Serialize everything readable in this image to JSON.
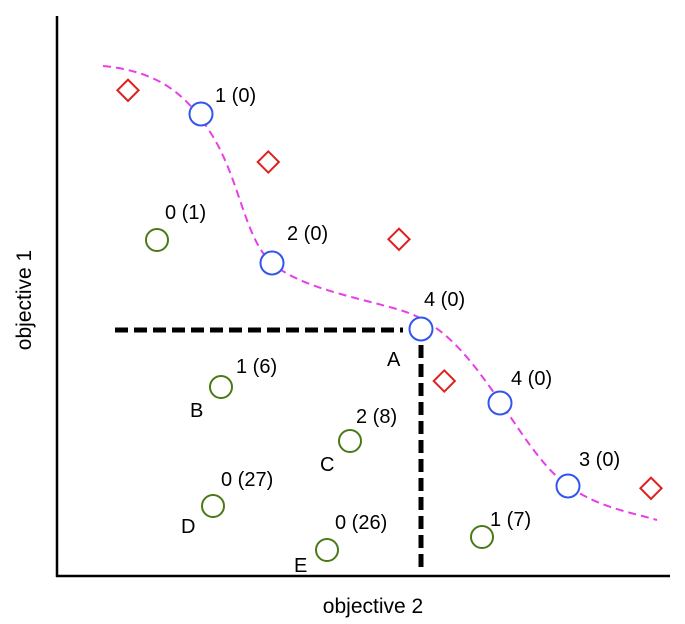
{
  "axes": {
    "x_title": "objective 2",
    "y_title": "objective 1"
  },
  "pareto_points": [
    {
      "rank": "1 (0)"
    },
    {
      "rank": "2 (0)"
    },
    {
      "rank": "4 (0)",
      "letter": "A"
    },
    {
      "rank": "4 (0)"
    },
    {
      "rank": "3 (0)"
    }
  ],
  "dominated_points": [
    {
      "rank": "0 (1)"
    },
    {
      "rank": "1 (6)",
      "letter": "B"
    },
    {
      "rank": "2 (8)",
      "letter": "C"
    },
    {
      "rank": "0 (27)",
      "letter": "D"
    },
    {
      "rank": "0 (26)",
      "letter": "E"
    },
    {
      "rank": "1 (7)"
    }
  ],
  "infeasible_points": [
    {
      "id": "d1"
    },
    {
      "id": "d2"
    },
    {
      "id": "d3"
    },
    {
      "id": "d4"
    },
    {
      "id": "d5"
    }
  ],
  "colors": {
    "pareto_point": "#3355ee",
    "dominated_point": "#4a7a16",
    "diamond_point": "#e02020",
    "front_curve": "#e83ee8",
    "dominance_lines": "#000000"
  }
}
